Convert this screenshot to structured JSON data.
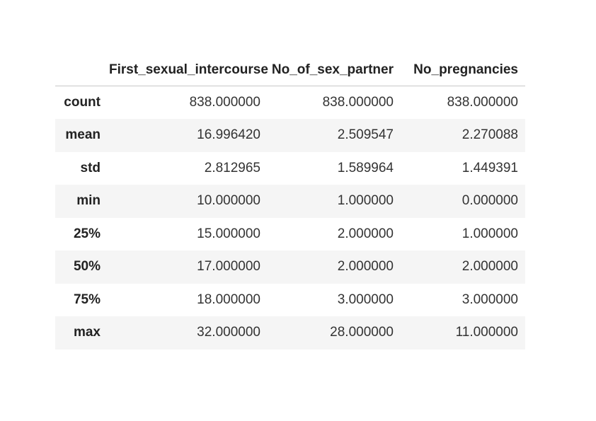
{
  "table": {
    "index_header": "",
    "columns": [
      "First_sexual_intercourse",
      "No_of_sex_partner",
      "No_pregnancies"
    ],
    "rows": [
      {
        "label": "count",
        "values": [
          "838.000000",
          "838.000000",
          "838.000000"
        ]
      },
      {
        "label": "mean",
        "values": [
          "16.996420",
          "2.509547",
          "2.270088"
        ]
      },
      {
        "label": "std",
        "values": [
          "2.812965",
          "1.589964",
          "1.449391"
        ]
      },
      {
        "label": "min",
        "values": [
          "10.000000",
          "1.000000",
          "0.000000"
        ]
      },
      {
        "label": "25%",
        "values": [
          "15.000000",
          "2.000000",
          "1.000000"
        ]
      },
      {
        "label": "50%",
        "values": [
          "17.000000",
          "2.000000",
          "2.000000"
        ]
      },
      {
        "label": "75%",
        "values": [
          "18.000000",
          "3.000000",
          "3.000000"
        ]
      },
      {
        "label": "max",
        "values": [
          "32.000000",
          "28.000000",
          "11.000000"
        ]
      }
    ]
  },
  "colors": {
    "stripe": "#f5f5f5",
    "header_rule": "#c8c8c8",
    "text": "#222222"
  }
}
